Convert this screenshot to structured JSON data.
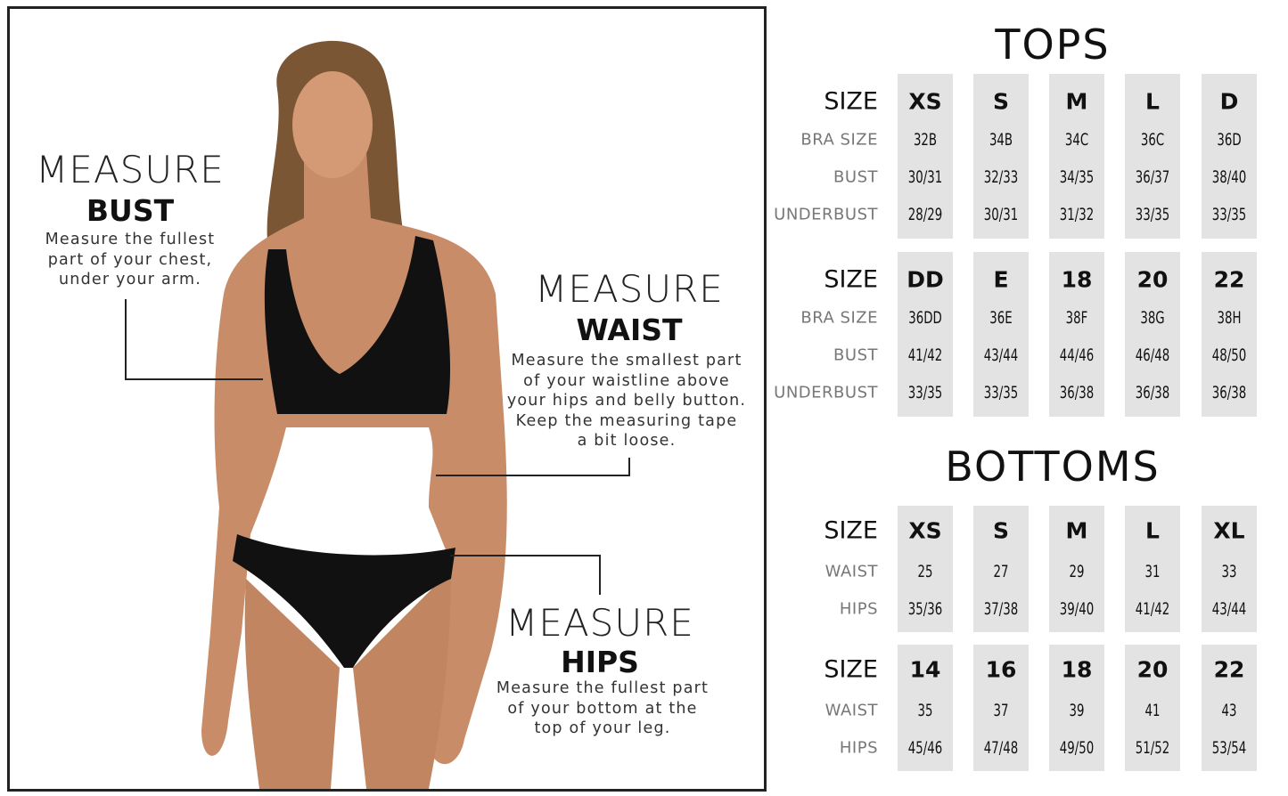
{
  "guide": {
    "bust": {
      "measure": "MEASURE",
      "label": "BUST",
      "description": "Measure the fullest\npart of your chest,\nunder your arm."
    },
    "waist": {
      "measure": "MEASURE",
      "label": "WAIST",
      "description": "Measure the smallest part\nof your waistline above\nyour hips and belly button.\nKeep the measuring tape\na bit loose."
    },
    "hips": {
      "measure": "MEASURE",
      "label": "HIPS",
      "description": "Measure the fullest part\nof your bottom at the\ntop of your leg."
    }
  },
  "colors": {
    "column_bg": "#e3e3e3",
    "label_gray": "#777777",
    "swimsuit": "#111111"
  },
  "tops": {
    "title": "TOPS",
    "row_labels": [
      "SIZE",
      "BRA SIZE",
      "BUST",
      "UNDERBUST"
    ],
    "groups": [
      {
        "sizes": [
          "XS",
          "S",
          "M",
          "L",
          "D"
        ],
        "bra_size": [
          "32B",
          "34B",
          "34C",
          "36C",
          "36D"
        ],
        "bust": [
          "30/31",
          "32/33",
          "34/35",
          "36/37",
          "38/40"
        ],
        "underbust": [
          "28/29",
          "30/31",
          "31/32",
          "33/35",
          "33/35"
        ]
      },
      {
        "sizes": [
          "DD",
          "E",
          "18",
          "20",
          "22"
        ],
        "bra_size": [
          "36DD",
          "36E",
          "38F",
          "38G",
          "38H"
        ],
        "bust": [
          "41/42",
          "43/44",
          "44/46",
          "46/48",
          "48/50"
        ],
        "underbust": [
          "33/35",
          "33/35",
          "36/38",
          "36/38",
          "36/38"
        ]
      }
    ]
  },
  "bottoms": {
    "title": "BOTTOMS",
    "row_labels": [
      "SIZE",
      "WAIST",
      "HIPS"
    ],
    "groups": [
      {
        "sizes": [
          "XS",
          "S",
          "M",
          "L",
          "XL"
        ],
        "waist": [
          "25",
          "27",
          "29",
          "31",
          "33"
        ],
        "hips": [
          "35/36",
          "37/38",
          "39/40",
          "41/42",
          "43/44"
        ]
      },
      {
        "sizes": [
          "14",
          "16",
          "18",
          "20",
          "22"
        ],
        "waist": [
          "35",
          "37",
          "39",
          "41",
          "43"
        ],
        "hips": [
          "45/46",
          "47/48",
          "49/50",
          "51/52",
          "53/54"
        ]
      }
    ]
  }
}
